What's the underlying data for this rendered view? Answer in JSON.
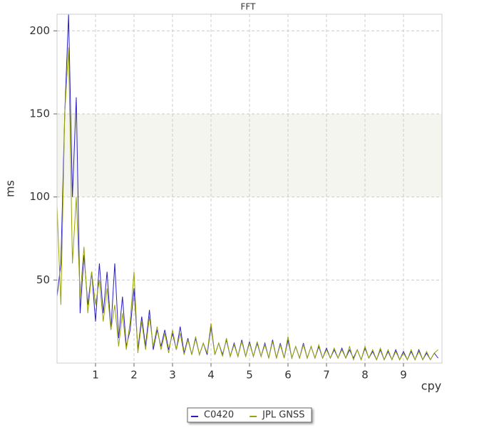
{
  "chart_data": {
    "type": "line",
    "title": "FFT",
    "x_label": "cpy",
    "y_label": "ms",
    "x": [
      0,
      0.1,
      0.2,
      0.3,
      0.4,
      0.5,
      0.6,
      0.7,
      0.8,
      0.9,
      1,
      1.1,
      1.2,
      1.3,
      1.4,
      1.5,
      1.6,
      1.7,
      1.8,
      1.9,
      2,
      2.1,
      2.2,
      2.3,
      2.4,
      2.5,
      2.6,
      2.7,
      2.8,
      2.9,
      3,
      3.1,
      3.2,
      3.3,
      3.4,
      3.5,
      3.6,
      3.7,
      3.8,
      3.9,
      4,
      4.1,
      4.2,
      4.3,
      4.4,
      4.5,
      4.6,
      4.7,
      4.8,
      4.9,
      5,
      5.1,
      5.2,
      5.3,
      5.4,
      5.5,
      5.6,
      5.7,
      5.8,
      5.9,
      6,
      6.1,
      6.2,
      6.3,
      6.4,
      6.5,
      6.6,
      6.7,
      6.8,
      6.9,
      7,
      7.1,
      7.2,
      7.3,
      7.4,
      7.5,
      7.6,
      7.7,
      7.8,
      7.9,
      8,
      8.1,
      8.2,
      8.3,
      8.4,
      8.5,
      8.6,
      8.7,
      8.8,
      8.9,
      9,
      9.1,
      9.2,
      9.3,
      9.4,
      9.5,
      9.6,
      9.7,
      9.8,
      9.9
    ],
    "series": [
      {
        "name": "C0420",
        "color": "#2a1fc4",
        "values": [
          40,
          60,
          150,
          210,
          100,
          160,
          30,
          65,
          35,
          55,
          25,
          60,
          30,
          55,
          20,
          60,
          15,
          40,
          10,
          20,
          45,
          8,
          28,
          10,
          32,
          8,
          20,
          10,
          20,
          8,
          18,
          8,
          22,
          6,
          15,
          5,
          15,
          5,
          12,
          5,
          22,
          5,
          12,
          5,
          14,
          4,
          12,
          4,
          14,
          4,
          13,
          4,
          12,
          4,
          12,
          3,
          14,
          3,
          12,
          3,
          14,
          3,
          10,
          3,
          12,
          3,
          10,
          3,
          10,
          3,
          9,
          3,
          8,
          3,
          9,
          3,
          8,
          3,
          8,
          2,
          9,
          3,
          7,
          2,
          8,
          2,
          7,
          2,
          8,
          2,
          7,
          2,
          7,
          2,
          8,
          2,
          6,
          2,
          6,
          3
        ]
      },
      {
        "name": "JPL GNSS",
        "color": "#9aa400",
        "values": [
          95,
          35,
          150,
          190,
          60,
          100,
          40,
          70,
          30,
          55,
          35,
          50,
          25,
          45,
          20,
          35,
          10,
          30,
          8,
          25,
          55,
          6,
          25,
          8,
          28,
          10,
          22,
          8,
          18,
          6,
          20,
          8,
          18,
          5,
          14,
          5,
          16,
          5,
          12,
          6,
          24,
          5,
          12,
          4,
          15,
          4,
          11,
          4,
          13,
          4,
          12,
          4,
          13,
          4,
          11,
          3,
          13,
          3,
          11,
          3,
          16,
          3,
          10,
          3,
          11,
          3,
          10,
          3,
          11,
          3,
          8,
          3,
          9,
          3,
          8,
          3,
          10,
          2,
          8,
          2,
          10,
          3,
          8,
          2,
          9,
          2,
          8,
          2,
          7,
          2,
          6,
          2,
          8,
          2,
          7,
          2,
          7,
          2,
          6,
          8
        ]
      }
    ],
    "xlim": [
      0,
      10
    ],
    "ylim": [
      0,
      210
    ],
    "xticks": [
      1,
      2,
      3,
      4,
      5,
      6,
      7,
      8,
      9
    ],
    "yticks": [
      50,
      100,
      150,
      200
    ],
    "highlight_band": [
      100,
      150
    ],
    "grid": true
  }
}
